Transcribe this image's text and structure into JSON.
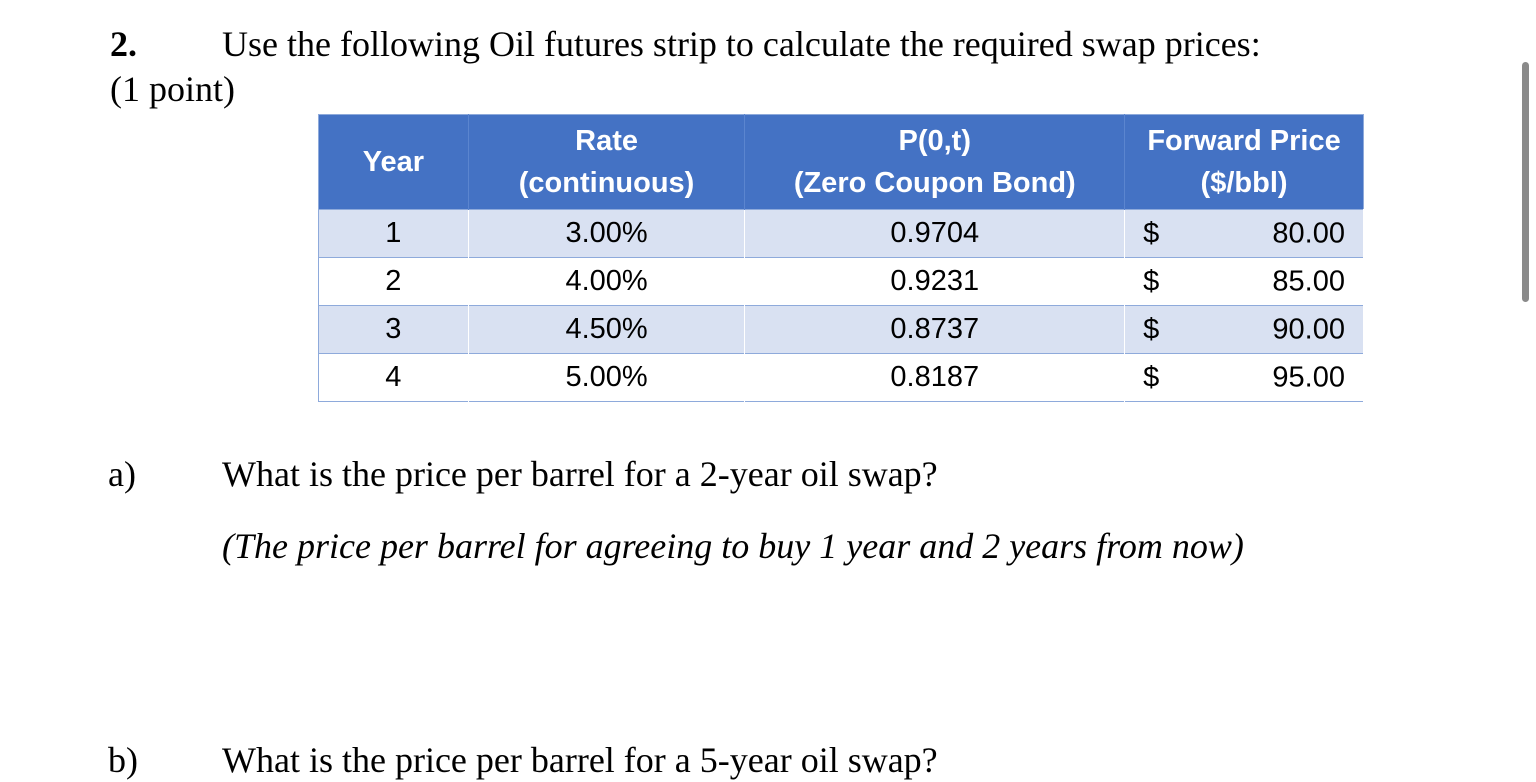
{
  "question": {
    "number": "2.",
    "text": "Use the following Oil futures strip to calculate the required swap prices:",
    "points": "(1 point)"
  },
  "table": {
    "headers": {
      "year": [
        "Year"
      ],
      "rate": [
        "Rate",
        "(continuous)"
      ],
      "zcb": [
        "P(0,t)",
        "(Zero Coupon Bond)"
      ],
      "forward": [
        "Forward Price",
        "($/bbl)"
      ]
    },
    "rows": [
      {
        "year": "1",
        "rate": "3.00%",
        "zcb": "0.9704",
        "currency": "$",
        "price": "80.00"
      },
      {
        "year": "2",
        "rate": "4.00%",
        "zcb": "0.9231",
        "currency": "$",
        "price": "85.00"
      },
      {
        "year": "3",
        "rate": "4.50%",
        "zcb": "0.8737",
        "currency": "$",
        "price": "90.00"
      },
      {
        "year": "4",
        "rate": "5.00%",
        "zcb": "0.8187",
        "currency": "$",
        "price": "95.00"
      }
    ]
  },
  "parts": {
    "a": {
      "label": "a)",
      "text": "What is the price per barrel for a 2-year oil swap?",
      "hint": "(The price per barrel for agreeing to buy 1 year and 2 years from now)"
    },
    "b": {
      "label": "b)",
      "text": "What is the price per barrel for a 5-year oil swap?"
    }
  },
  "colors": {
    "header_bg": "#4472c4",
    "band_bg": "#d9e1f2",
    "border": "#8eaadb"
  }
}
